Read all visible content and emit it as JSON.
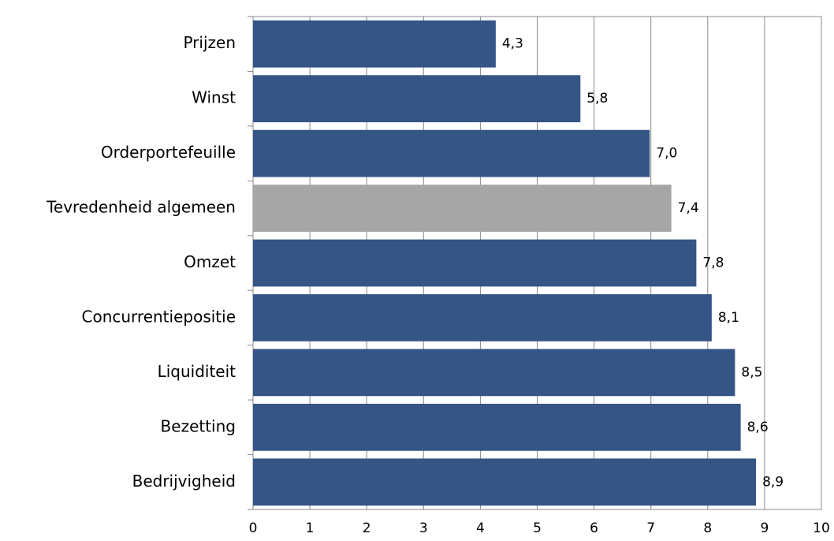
{
  "chart_data": {
    "type": "barh",
    "categories": [
      "Prijzen",
      "Winst",
      "Orderportefeuille",
      "Tevredenheid algemeen",
      "Omzet",
      "Concurrentiepositie",
      "Liquiditeit",
      "Bezetting",
      "Bedrijvigheid"
    ],
    "values": [
      4.27,
      5.76,
      6.98,
      7.36,
      7.8,
      8.07,
      8.48,
      8.58,
      8.85
    ],
    "value_labels": [
      "4,3",
      "5,8",
      "7,0",
      "7,4",
      "7,8",
      "8,1",
      "8,5",
      "8,6",
      "8,9"
    ],
    "colors": [
      "#355586",
      "#355586",
      "#355586",
      "#a6a6a6",
      "#355586",
      "#355586",
      "#355586",
      "#355586",
      "#355586"
    ],
    "xlim": [
      0,
      10
    ],
    "xticks": [
      0,
      1,
      2,
      3,
      4,
      5,
      6,
      7,
      8,
      9,
      10
    ],
    "grid": true
  }
}
